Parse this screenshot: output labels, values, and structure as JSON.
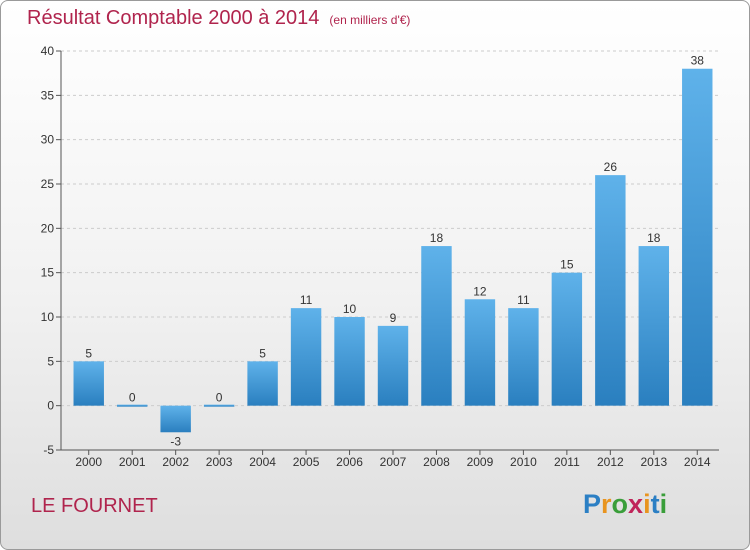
{
  "title": "Résultat Comptable 2000 à 2014",
  "unit_note": "(en milliers d'€)",
  "commune_name": "LE FOURNET",
  "logo": {
    "text": "Proxiti",
    "letter_colors": [
      "#2b7fc4",
      "#e8941f",
      "#3a9e3a",
      "#c0245a",
      "#e8941f",
      "#2b7fc4",
      "#3a9e3a"
    ]
  },
  "colors": {
    "bar_light": "#5fb2ea",
    "bar_dark": "#2a7fbf",
    "title": "#b0244d",
    "grid": "#cccccc"
  },
  "chart_data": {
    "type": "bar",
    "categories": [
      "2000",
      "2001",
      "2002",
      "2003",
      "2004",
      "2005",
      "2006",
      "2007",
      "2008",
      "2009",
      "2010",
      "2011",
      "2012",
      "2013",
      "2014"
    ],
    "values": [
      5,
      0,
      -3,
      0,
      5,
      11,
      10,
      9,
      18,
      12,
      11,
      15,
      26,
      18,
      38
    ],
    "ylim": [
      -5,
      40
    ],
    "yticks": [
      -5,
      0,
      5,
      10,
      15,
      20,
      25,
      30,
      35,
      40
    ],
    "grid": true,
    "legend": "none"
  }
}
